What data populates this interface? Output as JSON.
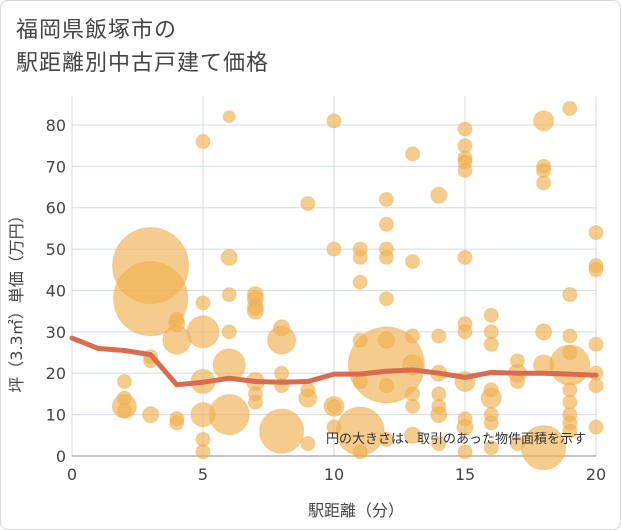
{
  "chart_data": {
    "type": "scatter",
    "title": "福岡県飯塚市の\n駅距離別中古戸建て価格",
    "xlabel": "駅距離（分）",
    "ylabel": "坪（3.3㎡）単価（万円）",
    "xlim": [
      0,
      20
    ],
    "ylim": [
      0,
      87
    ],
    "xticks": [
      0,
      5,
      10,
      15,
      20
    ],
    "yticks": [
      0,
      10,
      20,
      30,
      40,
      50,
      60,
      70,
      80
    ],
    "grid": true,
    "note": "円の大きさは、取引のあった物件面積を示す",
    "colors": {
      "bubble": "#f0b050",
      "line": "#d96b4f",
      "grid": "#d3dbe6"
    },
    "bubbles": [
      [
        3,
        46,
        38
      ],
      [
        3,
        38,
        37
      ],
      [
        12,
        22,
        38
      ],
      [
        11,
        6,
        24
      ],
      [
        8,
        6,
        22
      ],
      [
        6,
        10,
        20
      ],
      [
        19,
        22,
        20
      ],
      [
        18,
        2,
        22
      ],
      [
        6,
        22,
        16
      ],
      [
        5,
        30,
        16
      ],
      [
        8,
        28,
        14
      ],
      [
        4,
        28,
        14
      ],
      [
        5,
        18,
        12
      ],
      [
        5,
        10,
        12
      ],
      [
        10,
        12,
        10
      ],
      [
        2,
        12,
        12
      ],
      [
        13,
        22,
        10
      ],
      [
        15,
        18,
        10
      ],
      [
        16,
        14,
        10
      ],
      [
        9,
        14,
        9
      ],
      [
        7,
        18,
        9
      ],
      [
        17,
        20,
        9
      ],
      [
        18,
        22,
        10
      ],
      [
        14,
        20,
        8
      ],
      [
        6,
        82,
        6
      ],
      [
        5,
        76,
        7
      ],
      [
        10,
        81,
        7
      ],
      [
        15,
        79,
        7
      ],
      [
        15,
        75,
        7
      ],
      [
        15,
        72,
        7
      ],
      [
        15,
        71,
        7
      ],
      [
        15,
        69,
        7
      ],
      [
        18,
        81,
        10
      ],
      [
        19,
        84,
        7
      ],
      [
        13,
        73,
        7
      ],
      [
        18,
        70,
        7
      ],
      [
        18,
        69,
        7
      ],
      [
        18,
        66,
        7
      ],
      [
        9,
        61,
        7
      ],
      [
        14,
        63,
        8
      ],
      [
        12,
        62,
        7
      ],
      [
        12,
        56,
        7
      ],
      [
        10,
        50,
        7
      ],
      [
        11,
        50,
        7
      ],
      [
        12,
        50,
        7
      ],
      [
        11,
        48,
        7
      ],
      [
        12,
        48,
        7
      ],
      [
        13,
        47,
        7
      ],
      [
        15,
        48,
        7
      ],
      [
        20,
        54,
        7
      ],
      [
        20,
        46,
        7
      ],
      [
        20,
        45,
        7
      ],
      [
        6,
        48,
        8
      ],
      [
        5,
        37,
        7
      ],
      [
        6,
        39,
        7
      ],
      [
        7,
        39,
        8
      ],
      [
        7,
        38,
        8
      ],
      [
        7,
        36,
        8
      ],
      [
        7,
        35,
        8
      ],
      [
        11,
        42,
        7
      ],
      [
        12,
        38,
        7
      ],
      [
        19,
        39,
        7
      ],
      [
        16,
        34,
        7
      ],
      [
        15,
        32,
        7
      ],
      [
        15,
        30,
        7
      ],
      [
        16,
        30,
        7
      ],
      [
        18,
        30,
        8
      ],
      [
        19,
        29,
        7
      ],
      [
        16,
        27,
        7
      ],
      [
        20,
        27,
        7
      ],
      [
        11,
        28,
        7
      ],
      [
        12,
        28,
        8
      ],
      [
        13,
        29,
        7
      ],
      [
        14,
        29,
        7
      ],
      [
        8,
        31,
        8
      ],
      [
        6,
        30,
        7
      ],
      [
        3,
        24,
        7
      ],
      [
        3,
        23,
        7
      ],
      [
        4,
        32,
        8
      ],
      [
        4,
        33,
        7
      ],
      [
        2,
        18,
        7
      ],
      [
        2,
        14,
        7
      ],
      [
        2,
        11,
        7
      ],
      [
        3,
        10,
        8
      ],
      [
        4,
        9,
        7
      ],
      [
        4,
        8,
        7
      ],
      [
        7,
        15,
        7
      ],
      [
        7,
        13,
        7
      ],
      [
        9,
        16,
        7
      ],
      [
        10,
        12,
        7
      ],
      [
        11,
        18,
        7
      ],
      [
        12,
        17,
        7
      ],
      [
        13,
        15,
        7
      ],
      [
        13,
        12,
        7
      ],
      [
        14,
        15,
        7
      ],
      [
        14,
        12,
        7
      ],
      [
        14,
        10,
        8
      ],
      [
        15,
        9,
        7
      ],
      [
        15,
        7,
        8
      ],
      [
        16,
        16,
        7
      ],
      [
        16,
        10,
        7
      ],
      [
        16,
        8,
        7
      ],
      [
        17,
        18,
        7
      ],
      [
        17,
        23,
        7
      ],
      [
        19,
        25,
        7
      ],
      [
        19,
        16,
        7
      ],
      [
        19,
        13,
        7
      ],
      [
        19,
        10,
        7
      ],
      [
        19,
        8,
        7
      ],
      [
        19,
        6,
        7
      ],
      [
        20,
        20,
        7
      ],
      [
        20,
        17,
        7
      ],
      [
        20,
        7,
        7
      ],
      [
        5,
        4,
        7
      ],
      [
        5,
        1,
        7
      ],
      [
        8,
        20,
        7
      ],
      [
        8,
        17,
        7
      ],
      [
        9,
        3,
        7
      ],
      [
        10,
        7,
        7
      ],
      [
        12,
        4,
        7
      ],
      [
        13,
        5,
        8
      ],
      [
        14,
        3,
        7
      ],
      [
        16,
        2,
        7
      ],
      [
        17,
        3,
        7
      ],
      [
        15,
        1,
        7
      ],
      [
        11,
        1,
        7
      ]
    ],
    "trend": {
      "x": [
        0,
        1,
        2,
        3,
        4,
        5,
        6,
        7,
        8,
        9,
        10,
        11,
        12,
        13,
        14,
        15,
        16,
        17,
        18,
        19,
        20
      ],
      "y": [
        28.5,
        26,
        25.5,
        24.5,
        17.2,
        17.8,
        18.8,
        18,
        17.8,
        18,
        19.8,
        19.8,
        20.5,
        20.8,
        20,
        19,
        20.2,
        20,
        20,
        19.8,
        19.5
      ]
    }
  }
}
